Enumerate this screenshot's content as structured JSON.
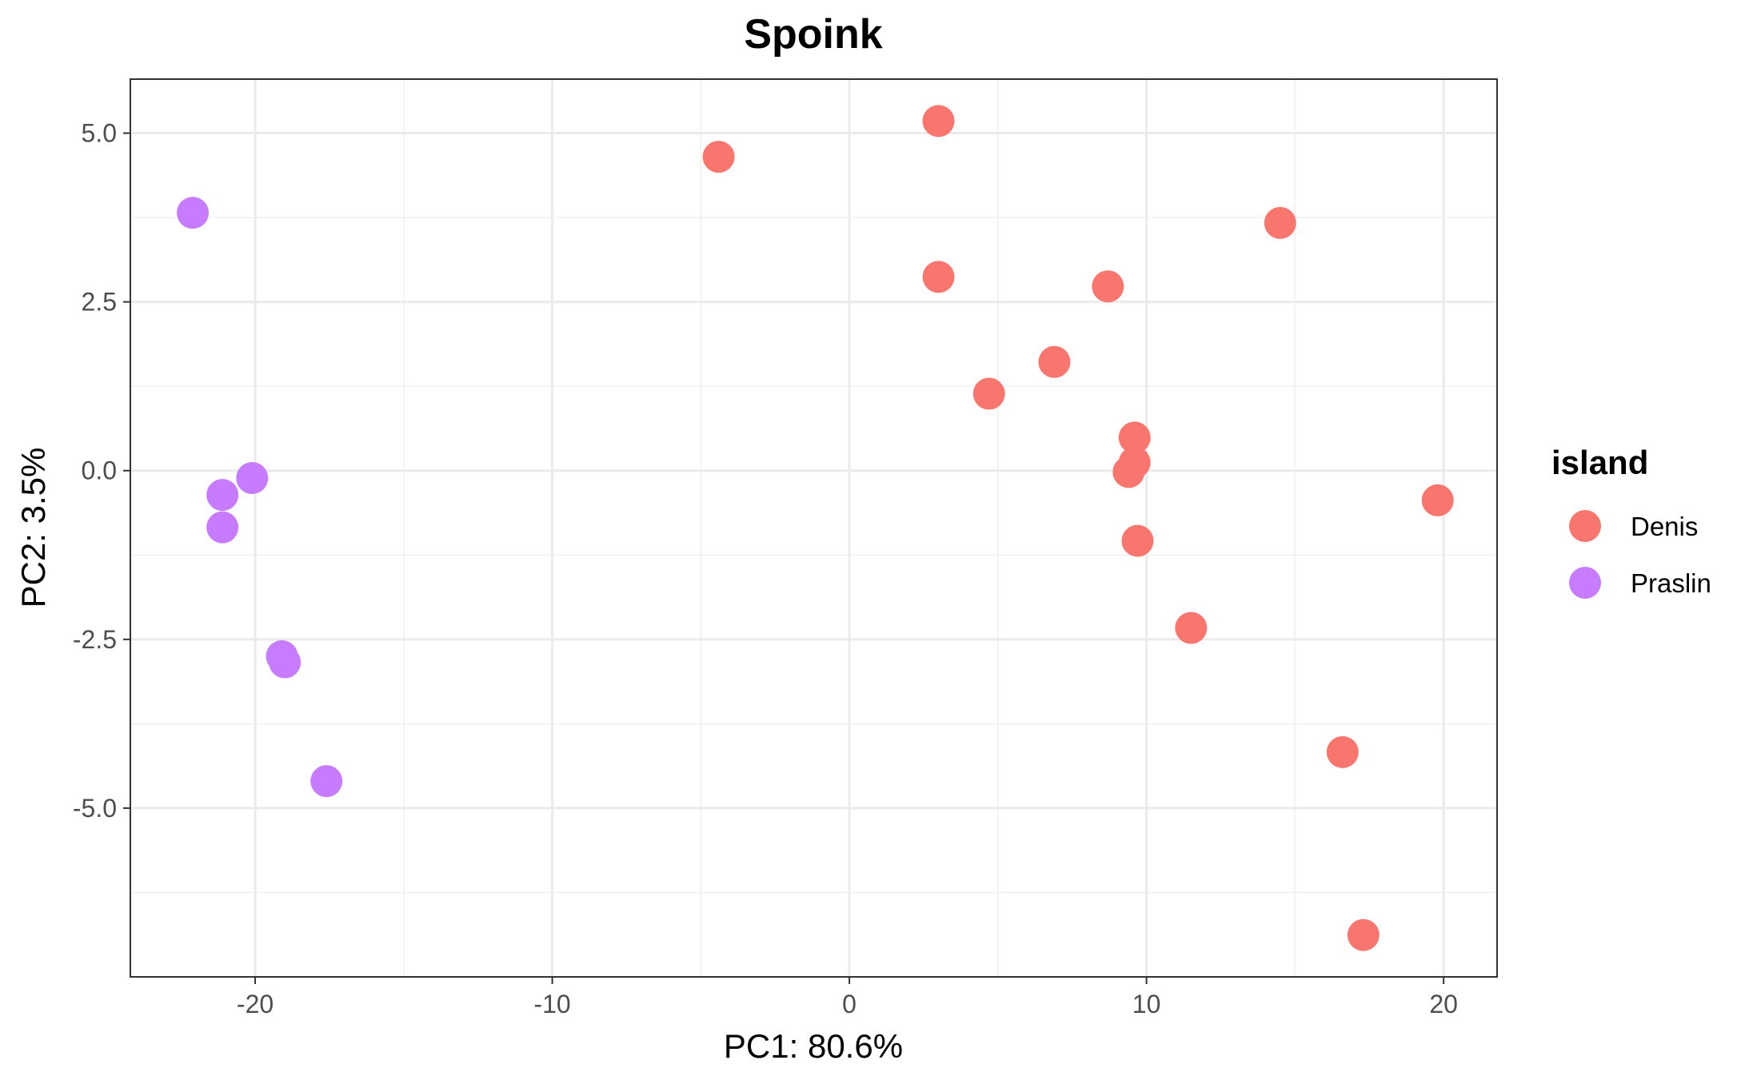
{
  "chart_data": {
    "type": "scatter",
    "title": "Spoink",
    "xlabel": "PC1: 80.6%",
    "ylabel": "PC2: 3.5%",
    "xlim": [
      -24.2,
      21.8
    ],
    "ylim": [
      -7.5,
      5.8
    ],
    "x_ticks": [
      -20,
      -10,
      0,
      10,
      20
    ],
    "x_tick_labels": [
      "-20",
      "-10",
      "0",
      "10",
      "20"
    ],
    "y_ticks": [
      5.0,
      2.5,
      0.0,
      -2.5,
      -5.0
    ],
    "y_tick_labels": [
      "5.0",
      "2.5",
      "0.0",
      "-2.5",
      "-5.0"
    ],
    "grid": true,
    "legend": {
      "title": "island",
      "position": "right"
    },
    "series": [
      {
        "name": "Denis",
        "color": "#F8766D",
        "points": [
          [
            -4.4,
            4.65
          ],
          [
            3.0,
            5.18
          ],
          [
            14.5,
            3.67
          ],
          [
            3.0,
            2.87
          ],
          [
            8.7,
            2.73
          ],
          [
            6.9,
            1.61
          ],
          [
            4.7,
            1.14
          ],
          [
            9.6,
            0.49
          ],
          [
            9.6,
            0.12
          ],
          [
            9.4,
            -0.02
          ],
          [
            19.8,
            -0.44
          ],
          [
            9.7,
            -1.04
          ],
          [
            11.5,
            -2.33
          ],
          [
            16.6,
            -4.17
          ],
          [
            17.3,
            -6.88
          ]
        ]
      },
      {
        "name": "Praslin",
        "color": "#C77CFF",
        "points": [
          [
            -22.1,
            3.82
          ],
          [
            -20.1,
            -0.11
          ],
          [
            -21.1,
            -0.36
          ],
          [
            -21.1,
            -0.84
          ],
          [
            -19.1,
            -2.75
          ],
          [
            -19.0,
            -2.84
          ],
          [
            -17.6,
            -4.6
          ]
        ]
      }
    ]
  }
}
